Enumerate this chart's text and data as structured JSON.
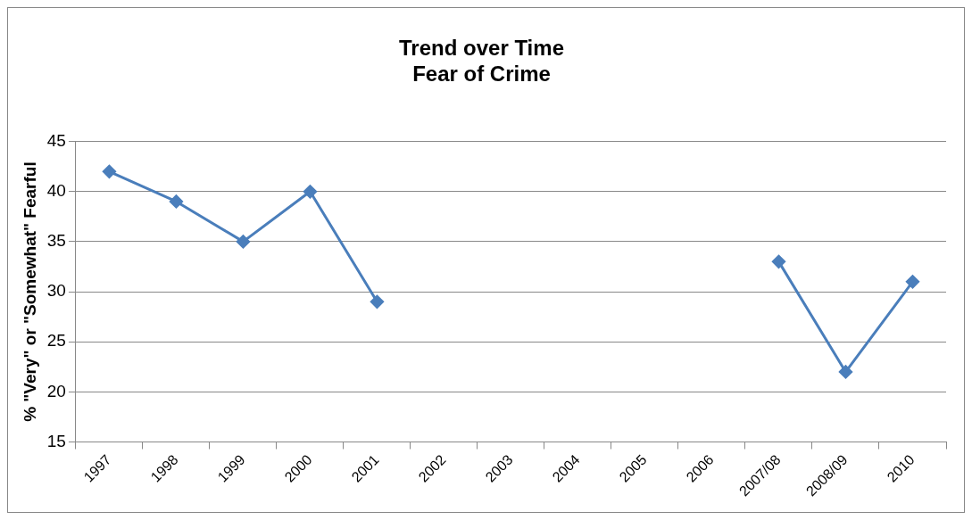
{
  "chart_data": {
    "type": "line",
    "title": [
      "Trend over Time",
      "Fear of Crime"
    ],
    "ylabel": "% \"Very\" or \"Somewhat\" Fearful",
    "categories": [
      "1997",
      "1998",
      "1999",
      "2000",
      "2001",
      "2002",
      "2003",
      "2004",
      "2005",
      "2006",
      "2007/08",
      "2008/09",
      "2010"
    ],
    "series": [
      {
        "color": "#4a7ebb",
        "values": [
          42,
          39,
          35,
          40,
          29,
          null,
          null,
          null,
          null,
          null,
          33,
          22,
          31
        ]
      }
    ],
    "ylim": [
      15,
      45
    ],
    "yticks": [
      15,
      20,
      25,
      30,
      35,
      40,
      45
    ],
    "grid": "y",
    "legend": false,
    "marker": "diamond",
    "line_style": "solid"
  }
}
